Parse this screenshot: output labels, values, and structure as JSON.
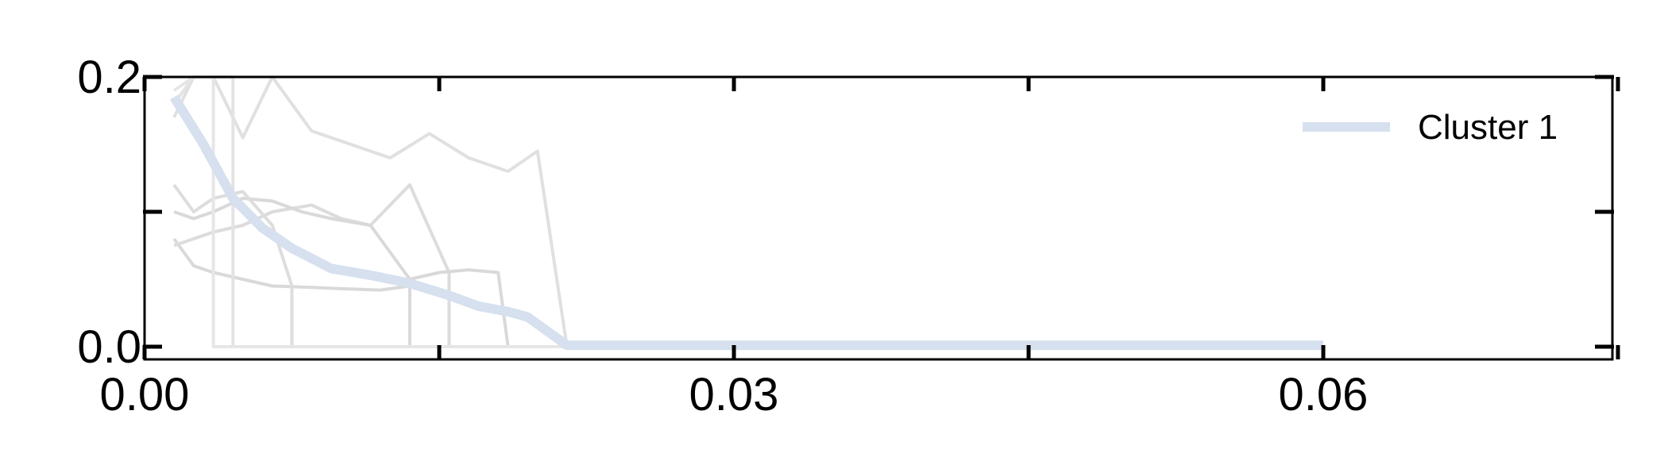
{
  "chart_data": {
    "type": "line",
    "title": "",
    "xlabel": "",
    "ylabel": "",
    "xlim": [
      0,
      0.075
    ],
    "ylim": [
      -0.01,
      0.2
    ],
    "x_ticks": [
      0,
      0.015,
      0.03,
      0.045,
      0.06,
      0.075
    ],
    "x_tick_labels": [
      "0.00",
      "",
      "0.03",
      "",
      "0.06",
      ""
    ],
    "y_ticks": [
      0,
      0.1,
      0.2
    ],
    "y_tick_labels": [
      "0.0",
      "",
      "0.2"
    ],
    "grid": false,
    "legend_position": "top-right",
    "series": [
      {
        "x": [
          0.0015,
          0.0025,
          0.0035,
          0.005,
          0.0065,
          0.0085,
          0.01,
          0.012,
          0.0135,
          0.0135,
          0.06
        ],
        "values": [
          0.08,
          0.06,
          0.055,
          0.05,
          0.045,
          0.044,
          0.043,
          0.042,
          0.045,
          0,
          0
        ],
        "color": "#d9d9d9"
      },
      {
        "x": [
          0.0015,
          0.0025,
          0.0035,
          0.005,
          0.0065,
          0.0085,
          0.01,
          0.0115,
          0.0135,
          0.0155,
          0.0155,
          0.06
        ],
        "values": [
          0.075,
          0.08,
          0.085,
          0.09,
          0.1,
          0.105,
          0.095,
          0.09,
          0.12,
          0.055,
          0,
          0
        ],
        "color": "#dcdcdc"
      },
      {
        "x": [
          0.0015,
          0.0025,
          0.0035,
          0.005,
          0.0065,
          0.008,
          0.0095,
          0.0115,
          0.0135,
          0.015,
          0.0165,
          0.018,
          0.0185,
          0.06
        ],
        "values": [
          0.1,
          0.095,
          0.1,
          0.11,
          0.108,
          0.1,
          0.095,
          0.09,
          0.05,
          0.055,
          0.057,
          0.055,
          0,
          0
        ],
        "color": "#d9d9d9"
      },
      {
        "x": [
          0.0015,
          0.0025,
          0.0035,
          0.005,
          0.0065,
          0.0075,
          0.0075,
          0.06
        ],
        "values": [
          0.12,
          0.1,
          0.11,
          0.115,
          0.09,
          0.045,
          0,
          0
        ],
        "color": "#dddddd"
      },
      {
        "x": [
          0.0015,
          0.0025,
          0.0035,
          0.005,
          0.0065,
          0.0085,
          0.0105,
          0.0125,
          0.0145,
          0.0165,
          0.0185,
          0.02,
          0.0215,
          0.06
        ],
        "values": [
          0.17,
          0.2,
          0.2,
          0.155,
          0.2,
          0.16,
          0.15,
          0.14,
          0.158,
          0.14,
          0.13,
          0.145,
          0,
          0
        ],
        "color": "#e0e0e0"
      },
      {
        "x": [
          0.0015,
          0.0025,
          0.0035,
          0.0045,
          0.0045,
          0.06
        ],
        "values": [
          0.18,
          0.2,
          0.2,
          0.2,
          0,
          0
        ],
        "color": "#e3e3e3"
      },
      {
        "x": [
          0.0015,
          0.0025,
          0.0035,
          0.0035,
          0.06
        ],
        "values": [
          0.19,
          0.2,
          0.2,
          0,
          0
        ],
        "color": "#e6e6e6"
      },
      {
        "x": [
          0.0015,
          0.003,
          0.0045,
          0.006,
          0.0075,
          0.0095,
          0.0115,
          0.0135,
          0.0155,
          0.017,
          0.0185,
          0.0195,
          0.0215,
          0.06
        ],
        "values": [
          0.185,
          0.15,
          0.11,
          0.088,
          0.073,
          0.058,
          0.053,
          0.047,
          0.038,
          0.03,
          0.026,
          0.022,
          0.001,
          0.001
        ],
        "color": "#d6e0ee",
        "name": "Cluster 1",
        "emphasis": true
      }
    ],
    "legend": [
      {
        "label": "Cluster 1",
        "color": "#d6e0ee"
      }
    ]
  }
}
